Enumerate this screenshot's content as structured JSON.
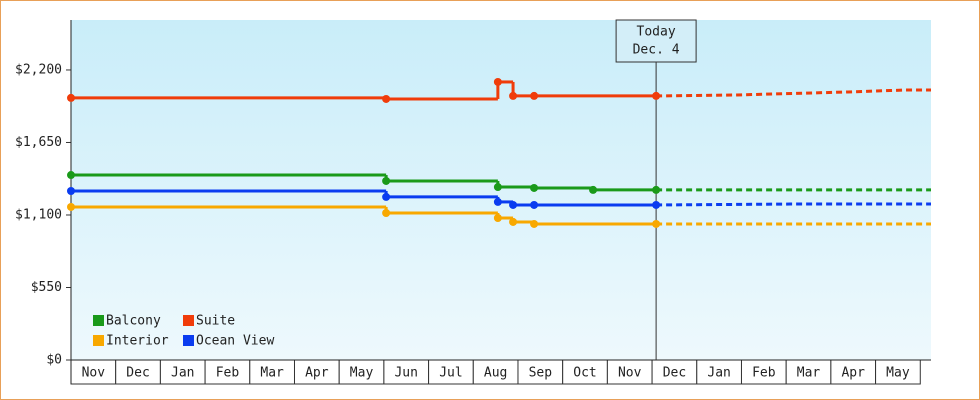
{
  "chart_data": {
    "type": "step-line",
    "categories": [
      "Nov",
      "Dec",
      "Jan",
      "Feb",
      "Mar",
      "Apr",
      "May",
      "Jun",
      "Jul",
      "Aug",
      "Sep",
      "Oct",
      "Nov",
      "Dec",
      "Jan",
      "Feb",
      "Mar",
      "Apr",
      "May"
    ],
    "xlim": [
      0,
      19.24
    ],
    "ylim": [
      0,
      2579
    ],
    "yticks": [
      {
        "value": 0,
        "label": "$0"
      },
      {
        "value": 550,
        "label": "$550"
      },
      {
        "value": 1100,
        "label": "$1,100"
      },
      {
        "value": 1650,
        "label": "$1,650"
      },
      {
        "value": 2200,
        "label": "$2,200"
      }
    ],
    "annotation": {
      "lines": [
        "Today",
        "Dec. 4"
      ],
      "x": 13.09
    },
    "legend_position": "lower left",
    "series": [
      {
        "name": "Balcony",
        "color": "#1a9a1a",
        "x": [
          0,
          7.05,
          9.55,
          10.36,
          11.68,
          13.09
        ],
        "values": [
          1403,
          1358,
          1312,
          1305,
          1290,
          1290
        ],
        "projection": {
          "x": [
            13.09,
            19.24
          ],
          "values": [
            1290,
            1290
          ]
        }
      },
      {
        "name": "Suite",
        "color": "#f03c0a",
        "x": [
          0,
          7.05,
          9.55,
          9.89,
          10.36,
          13.09
        ],
        "values": [
          1988,
          1980,
          2109,
          2003,
          2003,
          2003
        ],
        "projection": {
          "x": [
            13.09,
            14.85,
            17.38,
            18.66,
            19.24
          ],
          "values": [
            2003,
            2010,
            2033,
            2048,
            2048
          ]
        }
      },
      {
        "name": "Interior",
        "color": "#f8a800",
        "x": [
          0,
          7.05,
          9.55,
          9.89,
          10.36,
          13.09
        ],
        "values": [
          1161,
          1115,
          1077,
          1047,
          1032,
          1032
        ],
        "projection": {
          "x": [
            13.09,
            19.24
          ],
          "values": [
            1032,
            1032
          ]
        }
      },
      {
        "name": "Ocean View",
        "color": "#0a3cf0",
        "x": [
          0,
          7.05,
          9.55,
          9.89,
          10.36,
          13.09
        ],
        "values": [
          1282,
          1237,
          1199,
          1176,
          1176,
          1176
        ],
        "projection": {
          "x": [
            13.09,
            16.09,
            19.24
          ],
          "values": [
            1176,
            1183,
            1183
          ]
        }
      }
    ]
  }
}
